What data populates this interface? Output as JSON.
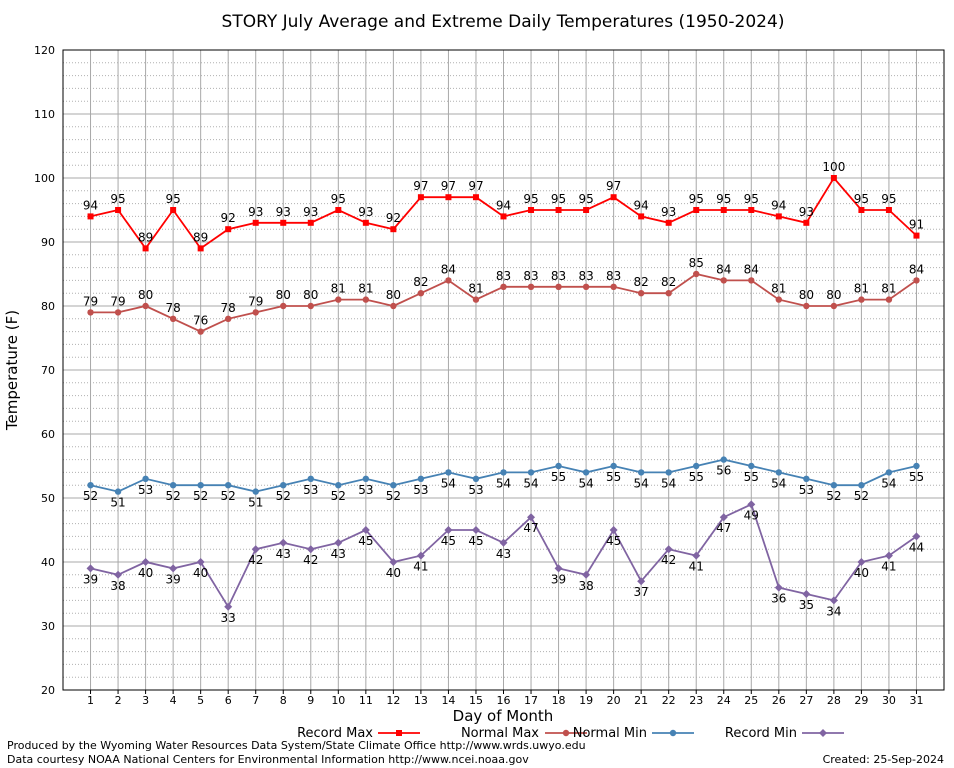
{
  "chart_data": {
    "type": "line",
    "title": "STORY July Average and Extreme Daily Temperatures (1950-2024)",
    "xlabel": "Day of Month",
    "ylabel": "Temperature (F)",
    "ylim": [
      20,
      120
    ],
    "yticks": [
      20,
      30,
      40,
      50,
      60,
      70,
      80,
      90,
      100,
      110,
      120
    ],
    "ytick_labels": [
      "20",
      "30",
      "40",
      "50",
      "60",
      "70",
      "80",
      "90",
      "100",
      "110",
      "120"
    ],
    "y_minor_step": 2,
    "x": [
      1,
      2,
      3,
      4,
      5,
      6,
      7,
      8,
      9,
      10,
      11,
      12,
      13,
      14,
      15,
      16,
      17,
      18,
      19,
      20,
      21,
      22,
      23,
      24,
      25,
      26,
      27,
      28,
      29,
      30,
      31
    ],
    "x_labels": [
      "1",
      "2",
      "3",
      "4",
      "5",
      "6",
      "7",
      "8",
      "9",
      "10",
      "11",
      "12",
      "13",
      "14",
      "15",
      "16",
      "17",
      "18",
      "19",
      "20",
      "21",
      "22",
      "23",
      "24",
      "25",
      "26",
      "27",
      "28",
      "29",
      "30",
      "31"
    ],
    "xlim": [
      0,
      32
    ],
    "grid": true,
    "legend_position": "bottom",
    "series": [
      {
        "name": "Record Max",
        "color": "#ff0000",
        "marker": "square",
        "label_position": "above",
        "values": [
          94,
          95,
          89,
          95,
          89,
          92,
          93,
          93,
          93,
          95,
          93,
          92,
          97,
          97,
          97,
          94,
          95,
          95,
          95,
          97,
          94,
          93,
          95,
          95,
          95,
          94,
          93,
          100,
          95,
          95,
          91
        ]
      },
      {
        "name": "Normal Max",
        "color": "#c0504d",
        "marker": "circle",
        "label_position": "above",
        "values": [
          79,
          79,
          80,
          78,
          76,
          78,
          79,
          80,
          80,
          81,
          81,
          80,
          82,
          84,
          81,
          83,
          83,
          83,
          83,
          83,
          82,
          82,
          85,
          84,
          84,
          81,
          80,
          80,
          81,
          81,
          84
        ]
      },
      {
        "name": "Normal Min",
        "color": "#4682b4",
        "marker": "circle",
        "label_position": "below",
        "values": [
          52,
          51,
          53,
          52,
          52,
          52,
          51,
          52,
          53,
          52,
          53,
          52,
          53,
          54,
          53,
          54,
          54,
          55,
          54,
          55,
          54,
          54,
          55,
          56,
          55,
          54,
          53,
          52,
          52,
          54,
          55
        ]
      },
      {
        "name": "Record Min",
        "color": "#8064a2",
        "marker": "diamond",
        "label_position": "below",
        "values": [
          39,
          38,
          40,
          39,
          40,
          33,
          42,
          43,
          42,
          43,
          45,
          40,
          41,
          45,
          45,
          43,
          47,
          39,
          38,
          45,
          37,
          42,
          41,
          47,
          49,
          36,
          35,
          34,
          40,
          41,
          44
        ]
      }
    ]
  },
  "footer": {
    "credit_line1": "Produced by the Wyoming Water Resources Data System/State Climate Office http://www.wrds.uwyo.edu",
    "credit_line2": "Data courtesy NOAA National Centers for Environmental Information http://www.ncei.noaa.gov",
    "created": "Created:  25-Sep-2024"
  }
}
